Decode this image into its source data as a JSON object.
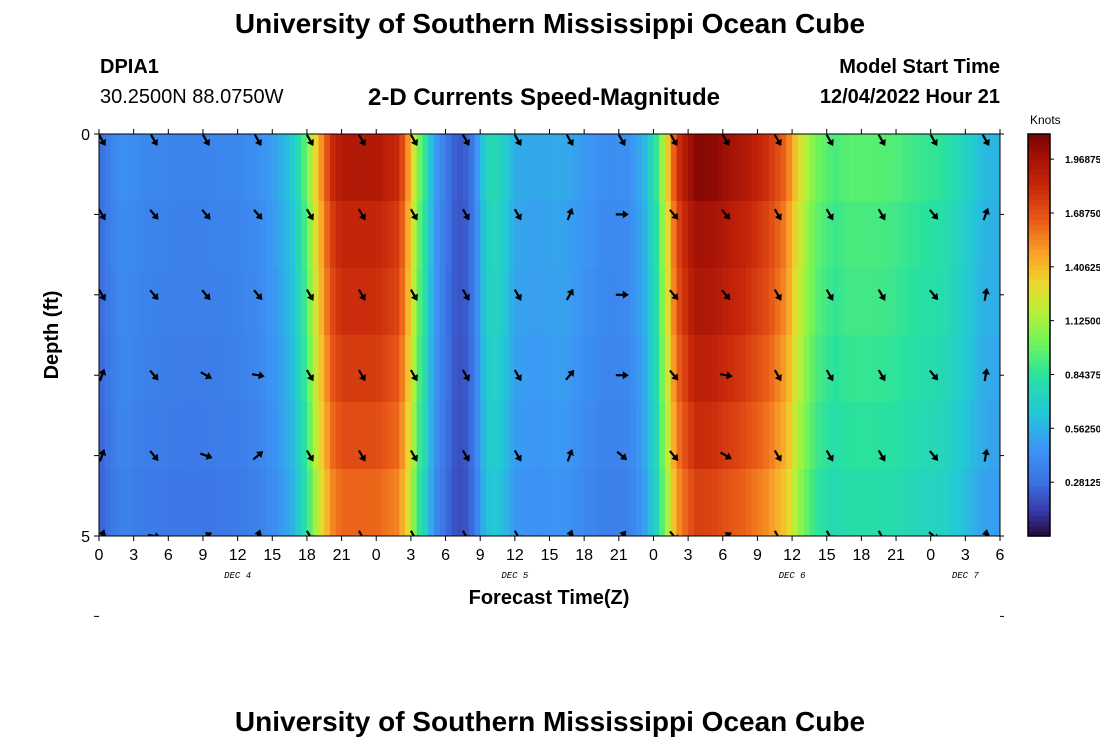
{
  "header": {
    "title": "University of Southern Mississippi Ocean Cube",
    "station_id": "DPIA1",
    "station_coords": "30.2500N  88.0750W",
    "model_start_label": "Model Start Time",
    "model_start_value": "12/04/2022 Hour 21"
  },
  "footer": {
    "title": "University of Southern Mississippi Ocean Cube"
  },
  "chart_data": {
    "type": "heatmap",
    "title": "2-D Currents Speed-Magnitude",
    "xlabel": "Forecast Time(Z)",
    "ylabel": "Depth (ft)",
    "x_range_hours": [
      0,
      78
    ],
    "y_range_ft": [
      0,
      5
    ],
    "x_tick_labels": [
      "0",
      "3",
      "6",
      "9",
      "12",
      "15",
      "18",
      "21",
      "0",
      "3",
      "6",
      "9",
      "12",
      "15",
      "18",
      "21",
      "0",
      "3",
      "6",
      "9",
      "12",
      "15",
      "18",
      "21",
      "0",
      "3",
      "6"
    ],
    "y_tick_labels": [
      "0",
      "5"
    ],
    "day_labels": [
      {
        "label": "DEC 4",
        "hour": 12
      },
      {
        "label": "DEC 5",
        "hour": 36
      },
      {
        "label": "DEC 6",
        "hour": 60
      },
      {
        "label": "DEC 7",
        "hour": 75
      }
    ],
    "colorbar": {
      "unit": "Knots",
      "min": 0.0,
      "max": 2.1,
      "tick_labels": [
        "1.96875",
        "1.68750",
        "1.40625",
        "1.12500",
        "0.84375",
        "0.56250",
        "0.28125"
      ],
      "tick_values": [
        1.96875,
        1.6875,
        1.40625,
        1.125,
        0.84375,
        0.5625,
        0.28125
      ]
    },
    "speed_profile": {
      "hours": [
        0,
        0.5,
        2,
        4,
        8,
        12,
        14,
        15.5,
        16.8,
        17.6,
        18.2,
        18.8,
        19.5,
        20.2,
        21,
        24,
        26,
        27,
        27.6,
        28.2,
        29,
        30,
        31,
        32,
        32.6,
        33,
        33.6,
        34.2,
        35,
        36,
        38,
        40,
        42,
        44,
        46,
        47.2,
        48.3,
        49.2,
        50,
        50.8,
        51.6,
        53,
        56,
        58,
        59.5,
        60.8,
        62,
        63,
        63.6,
        64.2,
        65,
        67,
        69,
        71,
        73,
        75,
        76.5,
        78
      ],
      "speeds_knots": [
        0.25,
        0.32,
        0.42,
        0.38,
        0.36,
        0.38,
        0.42,
        0.5,
        0.65,
        0.85,
        1.05,
        1.3,
        1.55,
        1.75,
        1.85,
        1.85,
        1.75,
        1.35,
        1.0,
        0.85,
        0.5,
        0.32,
        0.2,
        0.24,
        0.38,
        0.55,
        0.72,
        0.75,
        0.7,
        0.52,
        0.5,
        0.52,
        0.46,
        0.4,
        0.42,
        0.55,
        0.85,
        1.3,
        1.7,
        1.85,
        1.98,
        1.97,
        1.85,
        1.72,
        1.55,
        1.2,
        0.98,
        0.92,
        0.88,
        0.9,
        0.92,
        0.92,
        0.9,
        0.85,
        0.82,
        0.7,
        0.58,
        0.55
      ]
    },
    "depth_factors": [
      1.04,
      1.0,
      0.98,
      0.95,
      0.92,
      0.88
    ],
    "vector_rows": [
      0,
      1,
      2,
      3,
      4,
      5
    ],
    "vector_hours": [
      0,
      4.5,
      9,
      13.5,
      18,
      22.5,
      27,
      31.5,
      36,
      40.5,
      45,
      49.5,
      54,
      58.5,
      63,
      67.5,
      72,
      76.5
    ],
    "vector_dirs_deg": [
      [
        150,
        150,
        150,
        150,
        150,
        150,
        150,
        150,
        150,
        150,
        150,
        150,
        150,
        150,
        150,
        150,
        150,
        150
      ],
      [
        150,
        140,
        140,
        140,
        150,
        150,
        150,
        150,
        150,
        20,
        90,
        140,
        140,
        150,
        150,
        150,
        140,
        20
      ],
      [
        150,
        140,
        140,
        140,
        150,
        150,
        150,
        150,
        150,
        30,
        90,
        140,
        140,
        150,
        150,
        150,
        140,
        10
      ],
      [
        20,
        140,
        120,
        100,
        150,
        150,
        150,
        150,
        150,
        40,
        90,
        140,
        100,
        150,
        150,
        150,
        140,
        10
      ],
      [
        20,
        140,
        110,
        50,
        150,
        150,
        150,
        150,
        150,
        20,
        130,
        140,
        120,
        150,
        150,
        150,
        140,
        10
      ],
      [
        20,
        100,
        60,
        20,
        150,
        150,
        150,
        150,
        150,
        20,
        40,
        140,
        60,
        150,
        150,
        150,
        130,
        10
      ]
    ]
  }
}
